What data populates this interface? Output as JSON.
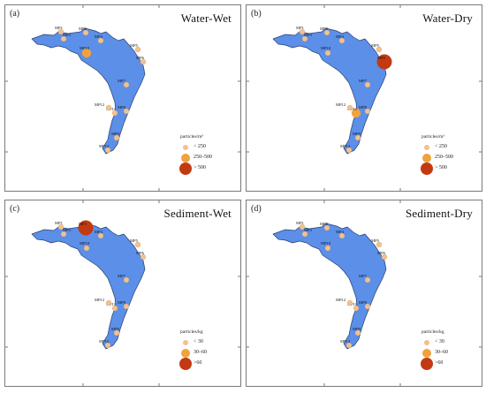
{
  "colors": {
    "lake": "#5b8fe8",
    "shore": "#2a3f70",
    "tick": "#555555",
    "small": "#f3c08e",
    "medium": "#f0a23c",
    "large": "#c33a12"
  },
  "site_labels": [
    "MP1",
    "MP2",
    "MP3",
    "MP4",
    "MP5",
    "MP6",
    "MP7",
    "MP8",
    "MP9",
    "MP10",
    "MP11",
    "MP12",
    "MP13"
  ],
  "panels": [
    {
      "letter": "(a)",
      "title": "Water-Wet",
      "legend": {
        "unit": "particles/m³",
        "classes": [
          {
            "label": "< 250",
            "level": "small"
          },
          {
            "label": "250–500",
            "level": "medium"
          },
          {
            "label": "> 500",
            "level": "large"
          }
        ]
      },
      "site_levels": {
        "MP10": "medium"
      }
    },
    {
      "letter": "(b)",
      "title": "Water-Dry",
      "legend": {
        "unit": "particles/m³",
        "classes": [
          {
            "label": "< 250",
            "level": "small"
          },
          {
            "label": "250–500",
            "level": "medium"
          },
          {
            "label": "> 500",
            "level": "large"
          }
        ]
      },
      "site_levels": {
        "MP6": "large",
        "MP11": "medium"
      }
    },
    {
      "letter": "(c)",
      "title": "Sediment-Wet",
      "legend": {
        "unit": "particles/kg",
        "classes": [
          {
            "label": "< 30",
            "level": "small"
          },
          {
            "label": "30–60",
            "level": "medium"
          },
          {
            "label": ">60",
            "level": "large"
          }
        ]
      },
      "site_levels": {
        "MP2": "large"
      }
    },
    {
      "letter": "(d)",
      "title": "Sediment-Dry",
      "legend": {
        "unit": "particles/kg",
        "classes": [
          {
            "label": "< 30",
            "level": "small"
          },
          {
            "label": "30–60",
            "level": "medium"
          },
          {
            "label": ">60",
            "level": "large"
          }
        ]
      },
      "site_levels": {}
    }
  ]
}
